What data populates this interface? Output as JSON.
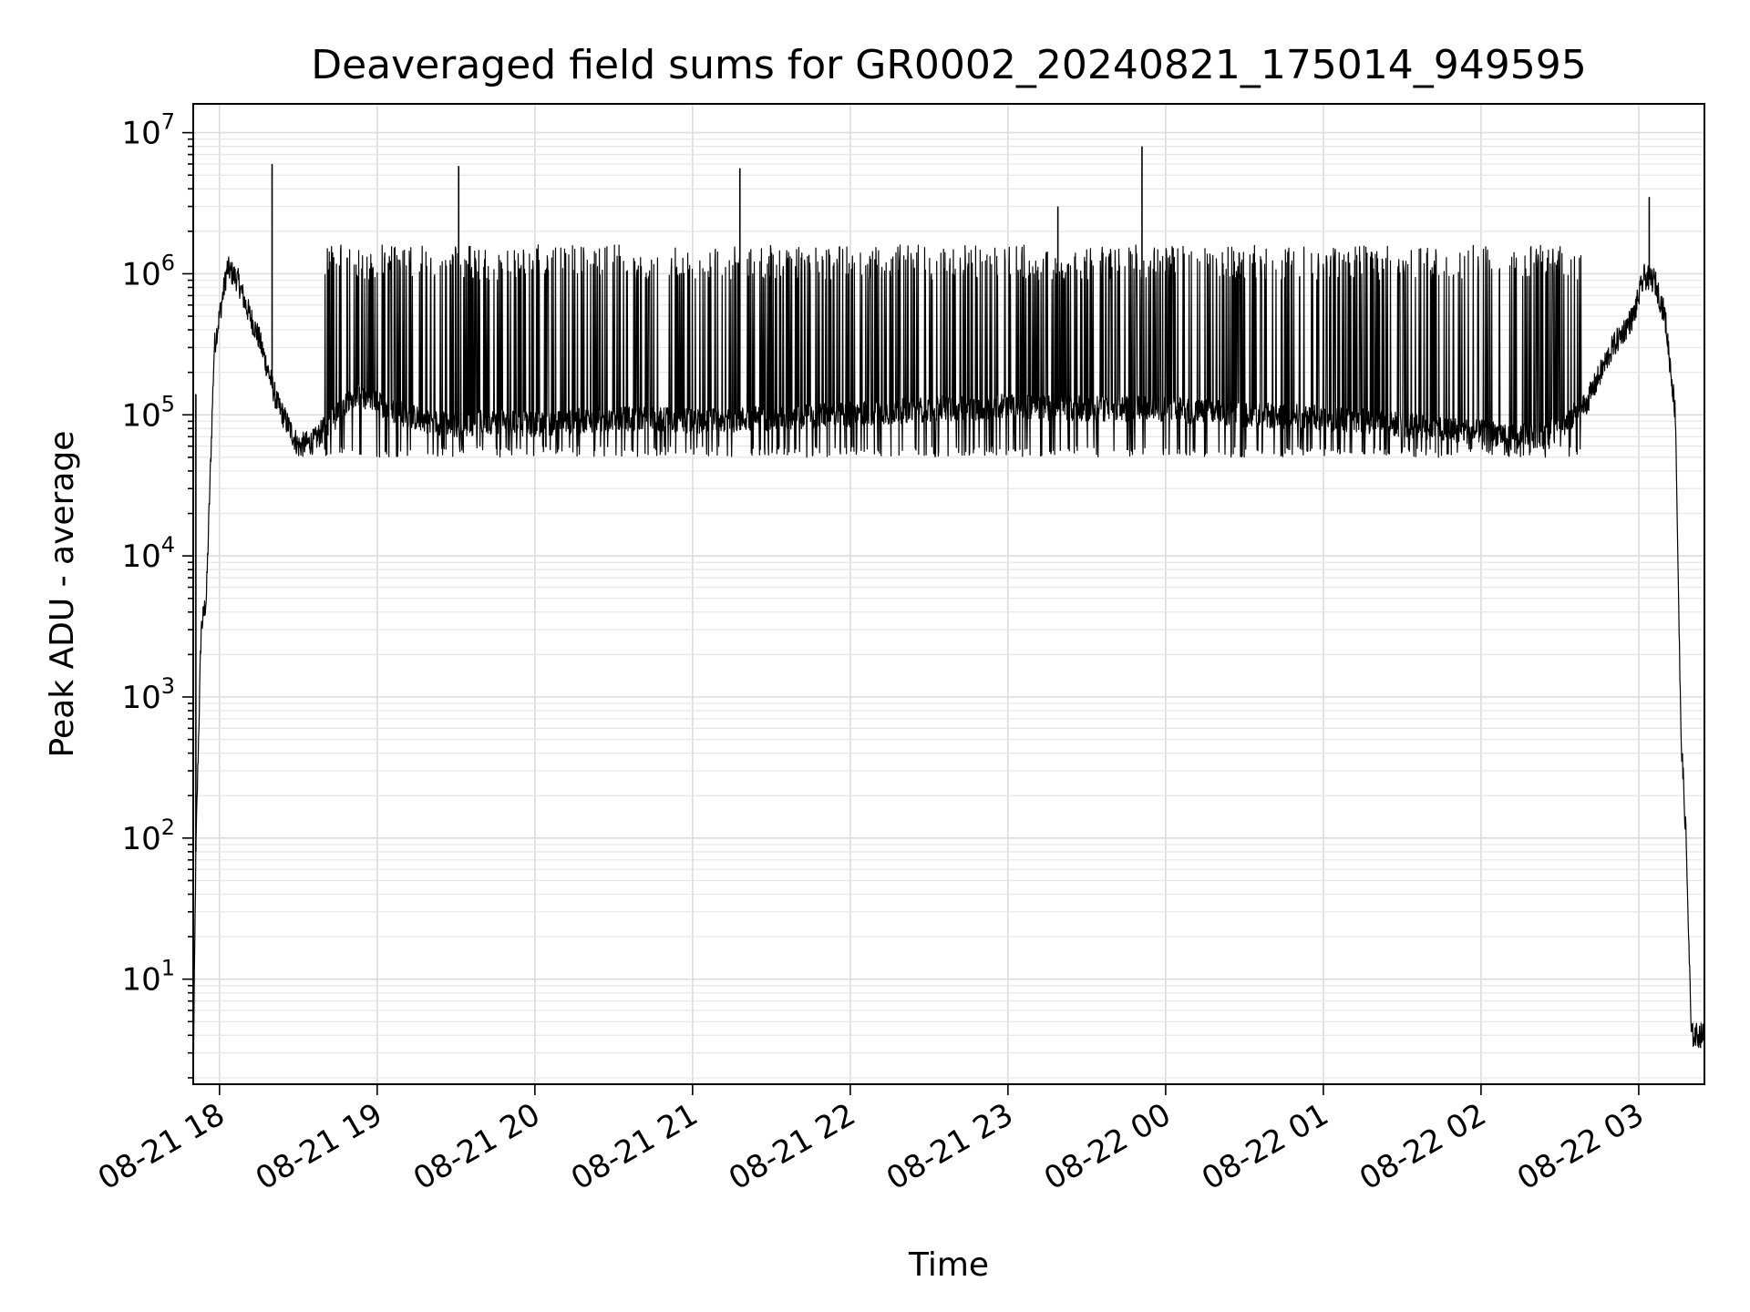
{
  "chart_data": {
    "type": "line",
    "title": "Deaveraged field sums for GR0002_20240821_175014_949595",
    "xlabel": "Time",
    "ylabel": "Peak ADU - average",
    "yscale": "log",
    "grid": true,
    "grid_minor": true,
    "ylim": [
      1.8,
      16000000
    ],
    "xlim": [
      "2024-08-21 17:50",
      "2024-08-22 03:25"
    ],
    "x_ticks": [
      "08-21 18",
      "08-21 19",
      "08-21 20",
      "08-21 21",
      "08-21 22",
      "08-21 23",
      "08-22 00",
      "08-22 01",
      "08-22 02",
      "08-22 03"
    ],
    "y_ticks": [
      {
        "base": "10",
        "exp": "1",
        "value": 10
      },
      {
        "base": "10",
        "exp": "2",
        "value": 100
      },
      {
        "base": "10",
        "exp": "3",
        "value": 1000
      },
      {
        "base": "10",
        "exp": "4",
        "value": 10000
      },
      {
        "base": "10",
        "exp": "5",
        "value": 100000
      },
      {
        "base": "10",
        "exp": "6",
        "value": 1000000
      },
      {
        "base": "10",
        "exp": "7",
        "value": 10000000
      }
    ],
    "series": [
      {
        "color": "#000000",
        "baseline_x": [
          "2024-08-21 17:50",
          "2024-08-21 17:51",
          "2024-08-21 17:53",
          "2024-08-21 17:55",
          "2024-08-21 17:58",
          "2024-08-21 18:03",
          "2024-08-21 18:07",
          "2024-08-21 18:10",
          "2024-08-21 18:15",
          "2024-08-21 18:22",
          "2024-08-21 18:30",
          "2024-08-21 18:36",
          "2024-08-21 18:40",
          "2024-08-21 18:45",
          "2024-08-21 18:50",
          "2024-08-21 19:00",
          "2024-08-21 19:10",
          "2024-08-21 19:20",
          "2024-08-21 19:30",
          "2024-08-21 19:45",
          "2024-08-21 20:00",
          "2024-08-21 20:30",
          "2024-08-21 21:00",
          "2024-08-21 21:30",
          "2024-08-21 22:00",
          "2024-08-21 22:30",
          "2024-08-21 23:00",
          "2024-08-21 23:30",
          "2024-08-22 00:00",
          "2024-08-22 00:30",
          "2024-08-22 01:00",
          "2024-08-22 01:30",
          "2024-08-22 02:00",
          "2024-08-22 02:20",
          "2024-08-22 02:30",
          "2024-08-22 02:40",
          "2024-08-22 02:50",
          "2024-08-22 02:58",
          "2024-08-22 03:02",
          "2024-08-22 03:06",
          "2024-08-22 03:10",
          "2024-08-22 03:14",
          "2024-08-22 03:16",
          "2024-08-22 03:18",
          "2024-08-22 03:20",
          "2024-08-22 03:25"
        ],
        "baseline_y": [
          1.8,
          80,
          3000,
          5000,
          300000,
          1100000,
          900000,
          600000,
          350000,
          120000,
          60000,
          65000,
          80000,
          100000,
          140000,
          120000,
          100000,
          90000,
          85000,
          90000,
          85000,
          95000,
          90000,
          95000,
          100000,
          110000,
          115000,
          110000,
          110000,
          100000,
          95000,
          85000,
          75000,
          70000,
          80000,
          120000,
          300000,
          500000,
          950000,
          900000,
          500000,
          100000,
          600,
          100,
          4,
          4
        ],
        "spikes_x": [
          "2024-08-21 17:51",
          "2024-08-21 18:20",
          "2024-08-21 19:31",
          "2024-08-21 21:18",
          "2024-08-21 23:19",
          "2024-08-21 23:51",
          "2024-08-22 03:04"
        ],
        "spikes_y": [
          140000,
          6000000,
          5800000,
          5600000,
          3000000,
          8000000,
          3500000
        ],
        "active_x": [
          "2024-08-21 18:40",
          "2024-08-22 02:38"
        ],
        "active_y": [
          50000,
          1600000
        ]
      }
    ]
  }
}
